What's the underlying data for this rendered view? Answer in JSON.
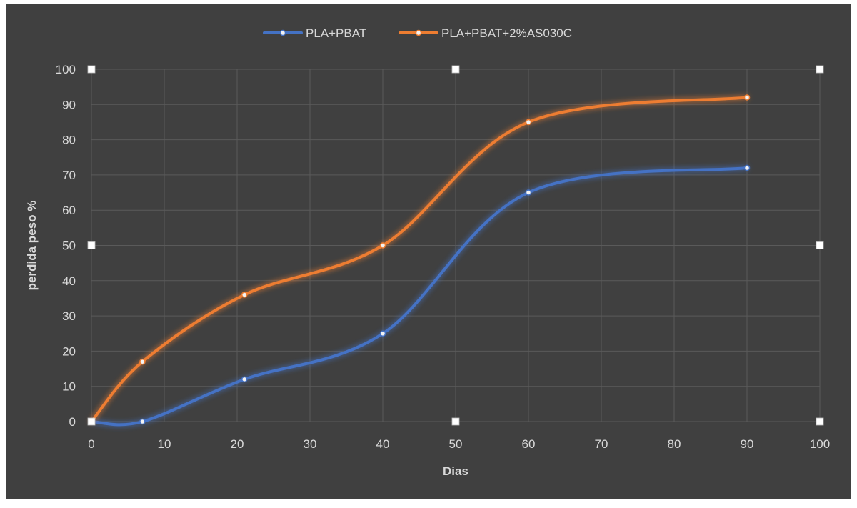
{
  "chart_data": {
    "type": "scatter",
    "title": "",
    "xlabel": "Dias",
    "ylabel": "perdida peso %",
    "xlim": [
      0,
      100
    ],
    "ylim": [
      0,
      100
    ],
    "xticks": [
      0,
      10,
      20,
      30,
      40,
      50,
      60,
      70,
      80,
      90,
      100
    ],
    "yticks": [
      0,
      10,
      20,
      30,
      40,
      50,
      60,
      70,
      80,
      90,
      100
    ],
    "grid": true,
    "smooth": true,
    "legend": "top",
    "series": [
      {
        "name": "PLA+PBAT",
        "color": "#4472c4",
        "x": [
          0,
          7,
          21,
          40,
          60,
          90
        ],
        "y": [
          0,
          0,
          12,
          25,
          65,
          72
        ]
      },
      {
        "name": "PLA+PBAT+2%AS030C",
        "color": "#ed7d31",
        "x": [
          0,
          7,
          21,
          40,
          60,
          90
        ],
        "y": [
          0,
          17,
          36,
          50,
          85,
          92
        ]
      }
    ]
  }
}
